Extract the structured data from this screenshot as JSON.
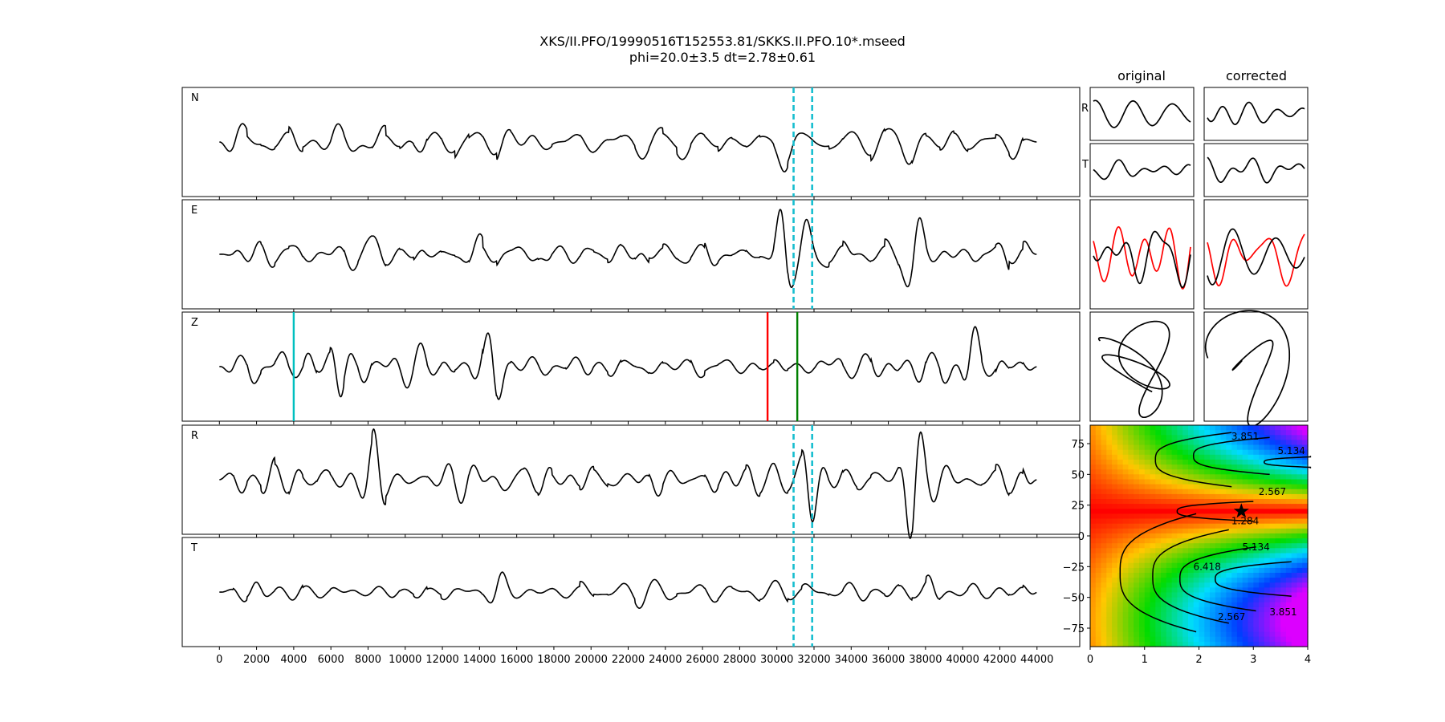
{
  "title": {
    "line1": "XKS/II.PFO/19990516T152553.81/SKKS.II.PFO.10*.mseed",
    "line2": "phi=20.0±3.5 dt=2.78±0.61"
  },
  "column_headers": {
    "original": "original",
    "corrected": "corrected"
  },
  "particle_labels": {
    "r": "R",
    "t": "T"
  },
  "colors": {
    "trace": "#000000",
    "window": "#17becf",
    "pick_red": "#ff0000",
    "pick_green": "#008000",
    "pick_cyan": "#00bfbf",
    "rotated": "#ff0000"
  },
  "chart_data": [
    {
      "type": "line",
      "description_panels": [
        "N",
        "E",
        "Z",
        "R",
        "T"
      ],
      "series": [
        {
          "name": "N",
          "seed": 11,
          "amp": 0.55,
          "bursts": [
            {
              "x": 30500,
              "a": 0.9
            },
            {
              "x": 37000,
              "a": 0.8
            }
          ]
        },
        {
          "name": "E",
          "seed": 23,
          "amp": 0.45,
          "bursts": [
            {
              "x": 30300,
              "a": 1.35
            },
            {
              "x": 31700,
              "a": 1.1
            },
            {
              "x": 37300,
              "a": 1.25
            },
            {
              "x": 8300,
              "a": 0.6
            }
          ]
        },
        {
          "name": "Z",
          "seed": 37,
          "amp": 0.6,
          "bursts": [
            {
              "x": 14800,
              "a": 0.95
            },
            {
              "x": 6500,
              "a": 0.75
            },
            {
              "x": 40300,
              "a": 0.9
            }
          ]
        },
        {
          "name": "R",
          "seed": 41,
          "amp": 0.4,
          "bursts": [
            {
              "x": 30300,
              "a": 1.45
            },
            {
              "x": 31700,
              "a": 1.25
            },
            {
              "x": 37200,
              "a": 1.5
            },
            {
              "x": 8300,
              "a": 0.55
            }
          ]
        },
        {
          "name": "T",
          "seed": 53,
          "amp": 0.45,
          "bursts": [
            {
              "x": 2000,
              "a": 0.7
            },
            {
              "x": 15000,
              "a": 0.7
            },
            {
              "x": 38500,
              "a": 0.7
            }
          ]
        }
      ],
      "xlim": [
        -2000,
        46300
      ],
      "x_range": [
        0,
        44000
      ],
      "xticks": [
        0,
        2000,
        4000,
        6000,
        8000,
        10000,
        12000,
        14000,
        16000,
        18000,
        20000,
        22000,
        24000,
        26000,
        28000,
        30000,
        32000,
        34000,
        36000,
        38000,
        40000,
        42000,
        44000
      ],
      "xtick_labels": [
        "0",
        "2000",
        "4000",
        "6000",
        "8000",
        "10000",
        "12000",
        "14000",
        "16000",
        "18000",
        "20000",
        "22000",
        "24000",
        "26000",
        "28000",
        "30000",
        "32000",
        "34000",
        "36000",
        "38000",
        "40000",
        "42000",
        "44000"
      ],
      "window": [
        30900,
        31900
      ],
      "picks": [
        {
          "x": 4000,
          "color": "cyan"
        },
        {
          "x": 29500,
          "color": "red"
        },
        {
          "x": 31100,
          "color": "green"
        }
      ]
    },
    {
      "type": "heatmap",
      "xlim": [
        0,
        4
      ],
      "ylim": [
        -90,
        90
      ],
      "xticks": [
        0,
        1,
        2,
        3,
        4
      ],
      "xtick_labels": [
        "0",
        "1",
        "2",
        "3",
        "4"
      ],
      "yticks": [
        75,
        50,
        25,
        0,
        -25,
        -50,
        -75
      ],
      "ytick_labels": [
        "75",
        "50",
        "25",
        "0",
        "−25",
        "−50",
        "−75"
      ],
      "contour_levels": [
        1.284,
        2.567,
        3.851,
        5.134,
        6.418
      ],
      "contour_labels": [
        {
          "text": "3.851",
          "x": 2.85,
          "y": 81
        },
        {
          "text": "5.134",
          "x": 3.7,
          "y": 69
        },
        {
          "text": "2.567",
          "x": 3.35,
          "y": 36
        },
        {
          "text": "1.284",
          "x": 2.85,
          "y": 12
        },
        {
          "text": "5.134",
          "x": 3.05,
          "y": -9
        },
        {
          "text": "6.418",
          "x": 2.15,
          "y": -25
        },
        {
          "text": "3.851",
          "x": 3.55,
          "y": -62
        },
        {
          "text": "2.567",
          "x": 2.6,
          "y": -66
        }
      ],
      "best": {
        "x": 2.78,
        "y": 20.0
      }
    }
  ]
}
